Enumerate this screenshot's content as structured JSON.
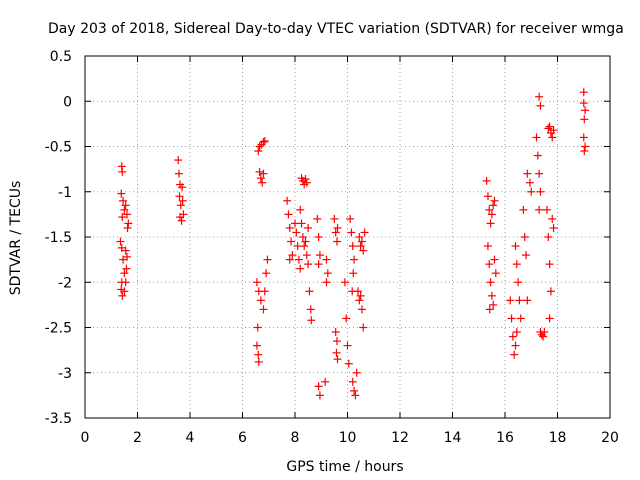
{
  "chart_data": {
    "type": "scatter",
    "title": "Day 203 of 2018, Sidereal Day-to-day VTEC variation (SDTVAR) for receiver wmga",
    "xlabel": "GPS time / hours",
    "ylabel": "SDTVAR / TECUs",
    "xlim": [
      0,
      20
    ],
    "ylim": [
      -3.5,
      0.5
    ],
    "xticks": [
      0,
      2,
      4,
      6,
      8,
      10,
      12,
      14,
      16,
      18,
      20
    ],
    "xtick_labels": [
      "0",
      "2",
      "4",
      "6",
      "8",
      "10",
      "12",
      "14",
      "16",
      "18",
      "20"
    ],
    "yticks": [
      0.5,
      0,
      -0.5,
      -1,
      -1.5,
      -2,
      -2.5,
      -3,
      -3.5
    ],
    "ytick_labels": [
      "0.5",
      "0",
      "-0.5",
      "-1",
      "-1.5",
      "-2",
      "-2.5",
      "-3",
      "-3.5"
    ],
    "grid": true,
    "marker": "+",
    "color": "#ff0000",
    "series": [
      {
        "name": "SDTVAR",
        "points": [
          [
            1.4,
            -0.72
          ],
          [
            1.42,
            -0.78
          ],
          [
            1.38,
            -1.02
          ],
          [
            1.45,
            -1.1
          ],
          [
            1.5,
            -1.2
          ],
          [
            1.42,
            -1.28
          ],
          [
            1.55,
            -1.15
          ],
          [
            1.6,
            -1.25
          ],
          [
            1.65,
            -1.35
          ],
          [
            1.62,
            -1.4
          ],
          [
            1.35,
            -1.55
          ],
          [
            1.4,
            -1.62
          ],
          [
            1.45,
            -1.75
          ],
          [
            1.5,
            -1.9
          ],
          [
            1.4,
            -2.0
          ],
          [
            1.38,
            -2.08
          ],
          [
            1.42,
            -2.15
          ],
          [
            1.55,
            -1.65
          ],
          [
            1.6,
            -1.72
          ],
          [
            1.58,
            -1.85
          ],
          [
            1.55,
            -2.0
          ],
          [
            1.5,
            -2.1
          ],
          [
            3.55,
            -0.65
          ],
          [
            3.58,
            -0.8
          ],
          [
            3.62,
            -0.92
          ],
          [
            3.6,
            -1.05
          ],
          [
            3.65,
            -1.15
          ],
          [
            3.62,
            -1.28
          ],
          [
            3.7,
            -0.95
          ],
          [
            3.72,
            -1.1
          ],
          [
            3.75,
            -1.25
          ],
          [
            3.68,
            -1.32
          ],
          [
            6.6,
            -0.55
          ],
          [
            6.65,
            -0.5
          ],
          [
            6.72,
            -0.48
          ],
          [
            6.8,
            -0.45
          ],
          [
            6.85,
            -0.44
          ],
          [
            6.65,
            -0.78
          ],
          [
            6.7,
            -0.85
          ],
          [
            6.75,
            -0.9
          ],
          [
            6.8,
            -0.8
          ],
          [
            6.55,
            -2.0
          ],
          [
            6.62,
            -2.1
          ],
          [
            6.7,
            -2.2
          ],
          [
            6.8,
            -2.3
          ],
          [
            6.85,
            -2.1
          ],
          [
            6.9,
            -1.9
          ],
          [
            6.95,
            -1.75
          ],
          [
            6.55,
            -2.7
          ],
          [
            6.6,
            -2.8
          ],
          [
            6.62,
            -2.88
          ],
          [
            6.58,
            -2.5
          ],
          [
            7.7,
            -1.1
          ],
          [
            7.75,
            -1.25
          ],
          [
            7.8,
            -1.4
          ],
          [
            7.85,
            -1.55
          ],
          [
            7.9,
            -1.7
          ],
          [
            7.8,
            -1.75
          ],
          [
            8.0,
            -1.35
          ],
          [
            8.05,
            -1.45
          ],
          [
            8.1,
            -1.6
          ],
          [
            8.15,
            -1.75
          ],
          [
            8.2,
            -1.85
          ],
          [
            8.25,
            -0.85
          ],
          [
            8.3,
            -0.88
          ],
          [
            8.35,
            -0.92
          ],
          [
            8.4,
            -0.86
          ],
          [
            8.45,
            -0.9
          ],
          [
            8.3,
            -1.5
          ],
          [
            8.35,
            -1.6
          ],
          [
            8.4,
            -1.55
          ],
          [
            8.45,
            -1.7
          ],
          [
            8.5,
            -1.8
          ],
          [
            8.55,
            -2.1
          ],
          [
            8.6,
            -2.3
          ],
          [
            8.62,
            -2.42
          ],
          [
            8.2,
            -1.2
          ],
          [
            8.25,
            -1.35
          ],
          [
            8.5,
            -1.4
          ],
          [
            8.85,
            -1.3
          ],
          [
            8.9,
            -1.5
          ],
          [
            8.95,
            -1.7
          ],
          [
            8.9,
            -1.8
          ],
          [
            8.9,
            -3.15
          ],
          [
            8.95,
            -3.25
          ],
          [
            9.15,
            -3.1
          ],
          [
            9.2,
            -1.75
          ],
          [
            9.25,
            -1.9
          ],
          [
            9.2,
            -2.0
          ],
          [
            9.5,
            -1.3
          ],
          [
            9.55,
            -1.45
          ],
          [
            9.6,
            -1.55
          ],
          [
            9.62,
            -1.4
          ],
          [
            9.55,
            -2.55
          ],
          [
            9.6,
            -2.65
          ],
          [
            9.58,
            -2.78
          ],
          [
            9.62,
            -2.85
          ],
          [
            9.9,
            -2.0
          ],
          [
            9.95,
            -2.4
          ],
          [
            10.0,
            -2.7
          ],
          [
            10.05,
            -2.9
          ],
          [
            10.1,
            -1.3
          ],
          [
            10.15,
            -1.45
          ],
          [
            10.2,
            -1.6
          ],
          [
            10.25,
            -1.75
          ],
          [
            10.22,
            -1.9
          ],
          [
            10.18,
            -2.1
          ],
          [
            10.2,
            -3.1
          ],
          [
            10.25,
            -3.2
          ],
          [
            10.3,
            -3.25
          ],
          [
            10.35,
            -3.0
          ],
          [
            10.4,
            -2.1
          ],
          [
            10.45,
            -2.2
          ],
          [
            10.5,
            -2.15
          ],
          [
            10.55,
            -2.3
          ],
          [
            10.6,
            -2.5
          ],
          [
            10.45,
            -1.5
          ],
          [
            10.5,
            -1.6
          ],
          [
            10.55,
            -1.55
          ],
          [
            10.6,
            -1.65
          ],
          [
            10.65,
            -1.45
          ],
          [
            15.3,
            -0.88
          ],
          [
            15.35,
            -1.05
          ],
          [
            15.4,
            -1.2
          ],
          [
            15.45,
            -1.35
          ],
          [
            15.5,
            -1.25
          ],
          [
            15.55,
            -1.15
          ],
          [
            15.6,
            -1.1
          ],
          [
            15.35,
            -1.6
          ],
          [
            15.4,
            -1.8
          ],
          [
            15.45,
            -2.0
          ],
          [
            15.5,
            -2.15
          ],
          [
            15.55,
            -2.25
          ],
          [
            15.42,
            -2.3
          ],
          [
            15.6,
            -1.75
          ],
          [
            15.65,
            -1.9
          ],
          [
            16.2,
            -2.2
          ],
          [
            16.25,
            -2.4
          ],
          [
            16.3,
            -2.6
          ],
          [
            16.35,
            -2.8
          ],
          [
            16.4,
            -2.7
          ],
          [
            16.45,
            -2.55
          ],
          [
            16.4,
            -1.6
          ],
          [
            16.45,
            -1.8
          ],
          [
            16.5,
            -2.0
          ],
          [
            16.55,
            -2.2
          ],
          [
            16.6,
            -2.4
          ],
          [
            16.7,
            -1.2
          ],
          [
            16.75,
            -1.5
          ],
          [
            16.8,
            -1.7
          ],
          [
            16.85,
            -2.2
          ],
          [
            16.85,
            -0.8
          ],
          [
            16.95,
            -0.9
          ],
          [
            17.0,
            -1.0
          ],
          [
            17.2,
            -0.4
          ],
          [
            17.25,
            -0.6
          ],
          [
            17.3,
            -0.8
          ],
          [
            17.35,
            -1.0
          ],
          [
            17.3,
            -1.2
          ],
          [
            17.3,
            0.05
          ],
          [
            17.35,
            -0.05
          ],
          [
            17.35,
            -2.55
          ],
          [
            17.4,
            -2.58
          ],
          [
            17.45,
            -2.6
          ],
          [
            17.5,
            -2.55
          ],
          [
            17.6,
            -1.2
          ],
          [
            17.65,
            -1.5
          ],
          [
            17.7,
            -1.8
          ],
          [
            17.75,
            -2.1
          ],
          [
            17.7,
            -2.4
          ],
          [
            17.65,
            -0.3
          ],
          [
            17.7,
            -0.28
          ],
          [
            17.75,
            -0.35
          ],
          [
            17.8,
            -0.4
          ],
          [
            17.85,
            -0.32
          ],
          [
            17.8,
            -1.3
          ],
          [
            17.85,
            -1.4
          ],
          [
            19.0,
            -0.02
          ],
          [
            19.05,
            -0.1
          ],
          [
            19.0,
            0.1
          ],
          [
            19.02,
            -0.2
          ],
          [
            19.0,
            -0.4
          ],
          [
            19.05,
            -0.5
          ],
          [
            19.02,
            -0.55
          ]
        ]
      }
    ]
  }
}
